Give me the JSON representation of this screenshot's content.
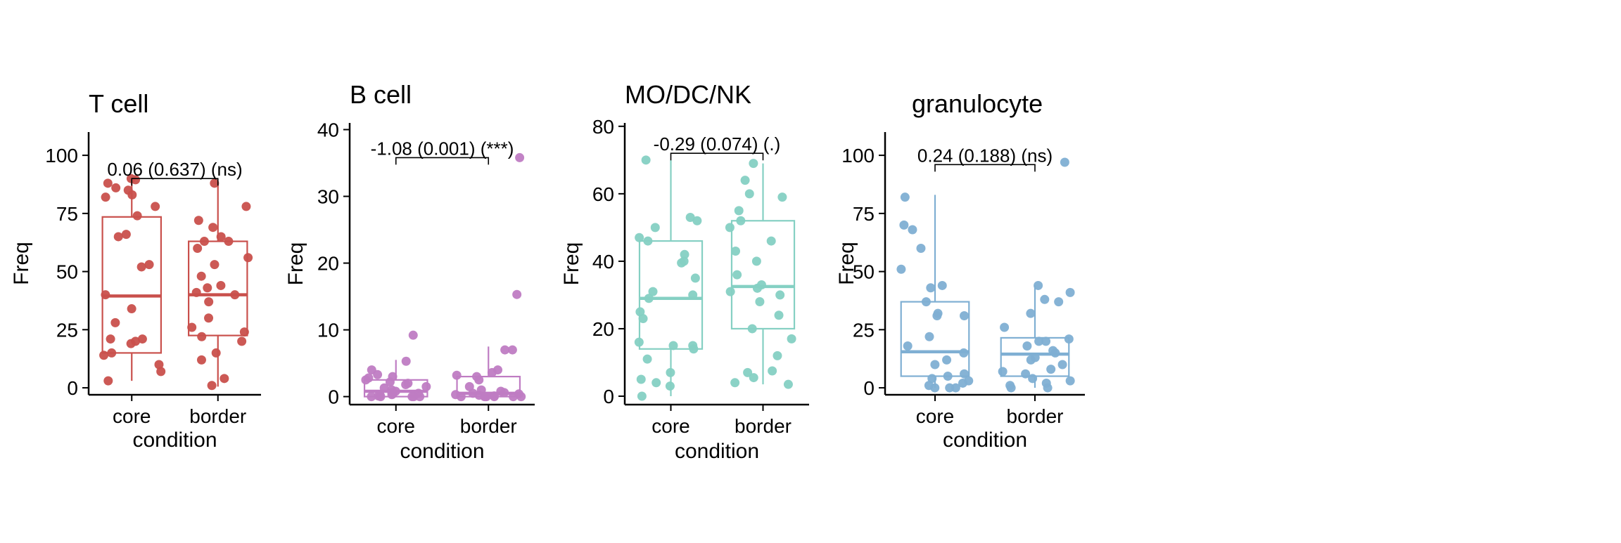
{
  "chart_data": [
    {
      "type": "box",
      "title": "T cell",
      "xlabel": "condition",
      "ylabel": "Freq",
      "ylim": [
        -3,
        110
      ],
      "yticks": [
        0,
        25,
        50,
        75,
        100
      ],
      "categories": [
        "core",
        "border"
      ],
      "color": "#C9504C",
      "annotation": "0.06 (0.637) (ns)",
      "bracket_y": 90,
      "boxes": [
        {
          "category": "core",
          "q1": 15,
          "median": 39.5,
          "q3": 73.5,
          "whisker_low": 3,
          "whisker_high": 90
        },
        {
          "category": "border",
          "q1": 22.5,
          "median": 40,
          "q3": 63,
          "whisker_low": 0.5,
          "whisker_high": 88
        }
      ],
      "points": [
        {
          "category": "core",
          "values": [
            90,
            89.5,
            88,
            86,
            85,
            83,
            82,
            78,
            74,
            66,
            65,
            53,
            52,
            40,
            34,
            28,
            21,
            21,
            20,
            19,
            15,
            14,
            10,
            7,
            3
          ]
        },
        {
          "category": "border",
          "values": [
            88,
            78,
            72,
            69,
            65,
            63,
            63,
            60,
            56,
            53,
            48,
            44,
            43,
            41,
            40,
            37,
            30,
            26,
            24,
            22,
            20,
            15,
            12,
            4,
            1
          ]
        }
      ]
    },
    {
      "type": "box",
      "title": "B cell",
      "xlabel": "condition",
      "ylabel": "Freq",
      "ylim": [
        -1.2,
        41
      ],
      "yticks": [
        0,
        10,
        20,
        30,
        40
      ],
      "categories": [
        "core",
        "border"
      ],
      "color": "#BF7CC3",
      "annotation": "-1.08 (0.001) (***)",
      "bracket_y": 35.8,
      "boxes": [
        {
          "category": "core",
          "q1": 0,
          "median": 0.8,
          "q3": 2.5,
          "whisker_low": 0,
          "whisker_high": 5.5
        },
        {
          "category": "border",
          "q1": 0,
          "median": 0.5,
          "q3": 3,
          "whisker_low": 0,
          "whisker_high": 7.5
        }
      ],
      "points": [
        {
          "category": "core",
          "values": [
            9.2,
            5.3,
            4,
            3.3,
            3,
            2.8,
            2.5,
            2.2,
            2,
            1.8,
            1.5,
            1.3,
            1,
            0.8,
            0.6,
            0.5,
            0.4,
            0.3,
            0.2,
            0.1,
            0,
            0,
            0,
            0,
            0
          ]
        },
        {
          "category": "border",
          "values": [
            35.8,
            15.3,
            7,
            7,
            4,
            3.6,
            3.2,
            3,
            2.5,
            1.5,
            1,
            0.8,
            0.6,
            0.5,
            0.4,
            0.3,
            0.2,
            0.1,
            0,
            0,
            0,
            0,
            0,
            0,
            0
          ]
        }
      ]
    },
    {
      "type": "box",
      "title": "MO/DC/NK",
      "xlabel": "condition",
      "ylabel": "Freq",
      "ylim": [
        -2.5,
        81
      ],
      "yticks": [
        0,
        20,
        40,
        60,
        80
      ],
      "categories": [
        "core",
        "border"
      ],
      "color": "#85D0C3",
      "annotation": "-0.29 (0.074) (.)",
      "bracket_y": 72,
      "boxes": [
        {
          "category": "core",
          "q1": 14,
          "median": 29,
          "q3": 46,
          "whisker_low": 0,
          "whisker_high": 70
        },
        {
          "category": "border",
          "q1": 20,
          "median": 32.5,
          "q3": 52,
          "whisker_low": 3.5,
          "whisker_high": 69
        }
      ],
      "points": [
        {
          "category": "core",
          "values": [
            70,
            53,
            52,
            50,
            47,
            46,
            42,
            40,
            39.5,
            35,
            31,
            30,
            29,
            25,
            23,
            16,
            15,
            15,
            14,
            11,
            7,
            5,
            4,
            3,
            0
          ]
        },
        {
          "category": "border",
          "values": [
            69,
            64,
            60,
            59,
            55,
            52,
            50,
            46,
            43,
            40,
            36,
            33,
            32,
            31,
            30,
            28,
            24,
            20,
            17,
            12,
            7.5,
            7,
            5.5,
            4,
            3.5
          ]
        }
      ]
    },
    {
      "type": "box",
      "title": "granulocyte",
      "xlabel": "condition",
      "ylabel": "Freq",
      "ylim": [
        -3,
        110
      ],
      "yticks": [
        0,
        25,
        50,
        75,
        100
      ],
      "categories": [
        "core",
        "border"
      ],
      "color": "#7FAFD3",
      "annotation": "0.24 (0.188) (ns)",
      "bracket_y": 96,
      "boxes": [
        {
          "category": "core",
          "q1": 5,
          "median": 15.5,
          "q3": 37,
          "whisker_low": 0,
          "whisker_high": 83
        },
        {
          "category": "border",
          "q1": 5,
          "median": 14.5,
          "q3": 21.5,
          "whisker_low": 0,
          "whisker_high": 44
        }
      ],
      "points": [
        {
          "category": "core",
          "values": [
            82,
            70,
            68,
            60,
            51,
            44,
            43,
            37,
            32,
            31,
            31,
            22,
            18,
            15,
            12,
            10,
            6,
            5,
            4,
            3,
            2,
            1,
            0,
            0,
            0
          ]
        },
        {
          "category": "border",
          "values": [
            97,
            44,
            41,
            38,
            37,
            32,
            26,
            21,
            20,
            20,
            18,
            16,
            15,
            13,
            12,
            10,
            8,
            7,
            6,
            4,
            3,
            2,
            1,
            0,
            0
          ]
        }
      ]
    }
  ]
}
